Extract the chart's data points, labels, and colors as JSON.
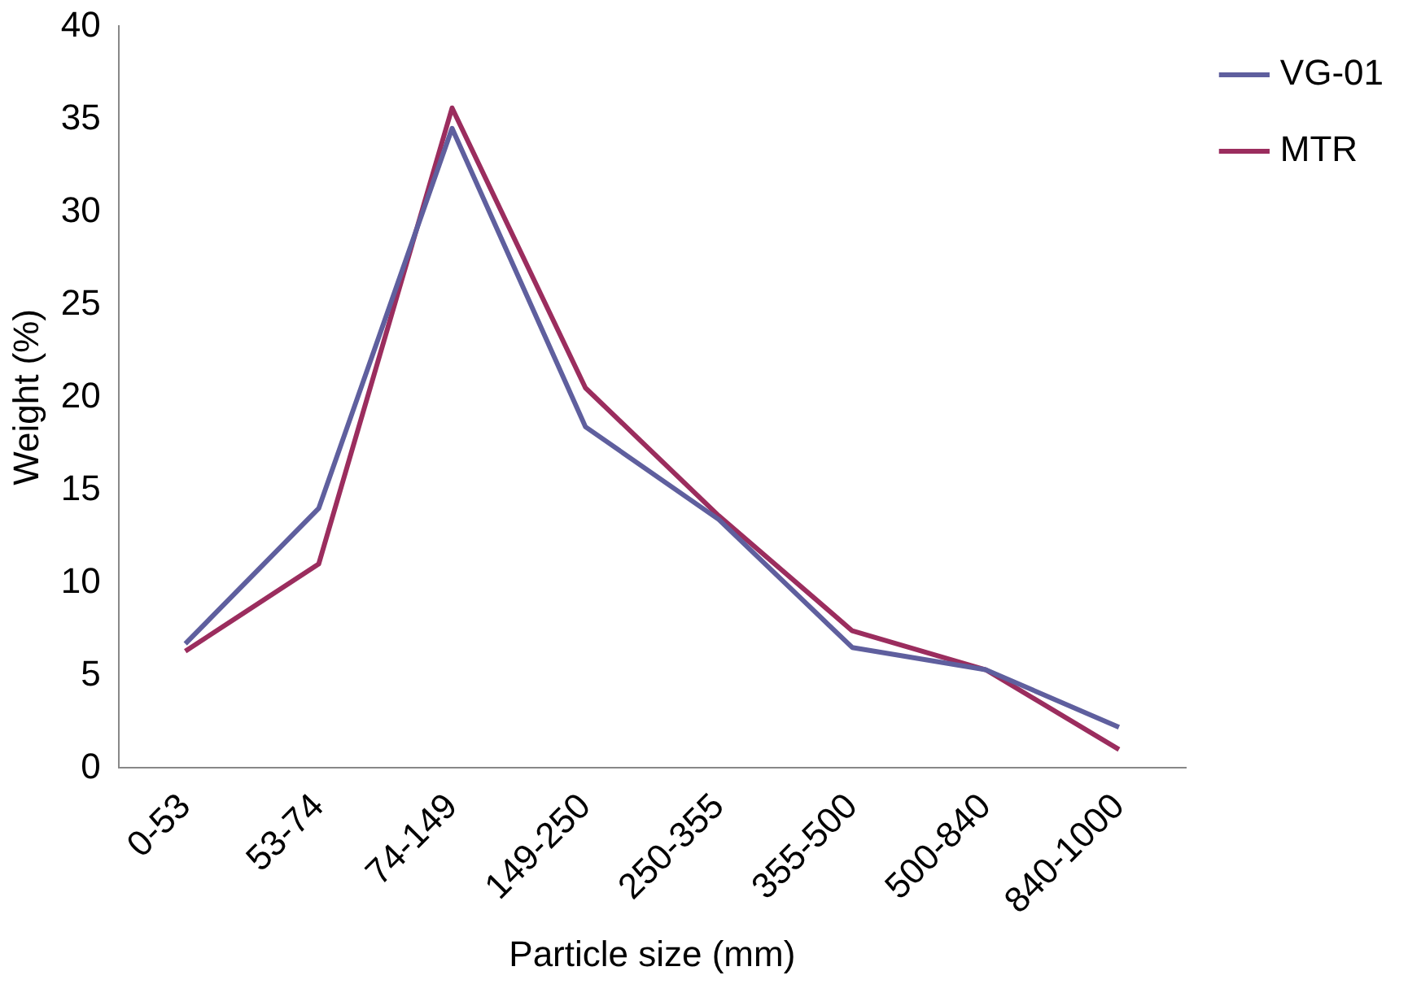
{
  "chart_data": {
    "type": "line",
    "xlabel": "Particle size (mm)",
    "ylabel": "Weight (%)",
    "categories": [
      "0-53",
      "53-74",
      "74-149",
      "149-250",
      "250-355",
      "355-500",
      "500-840",
      "840-1000"
    ],
    "series": [
      {
        "name": "VG-01",
        "color": "#5f5f9e",
        "values": [
          6.7,
          14,
          34.5,
          18.4,
          13.4,
          6.5,
          5.3,
          2.2
        ]
      },
      {
        "name": "MTR",
        "color": "#9b2d5e",
        "values": [
          6.3,
          11,
          35.6,
          20.5,
          13.6,
          7.4,
          5.3,
          1.0
        ]
      }
    ],
    "ylim": [
      0,
      40
    ],
    "yticks": [
      0,
      5,
      10,
      15,
      20,
      25,
      30,
      35,
      40
    ],
    "grid": false,
    "legend": "top right",
    "marker": "none"
  }
}
